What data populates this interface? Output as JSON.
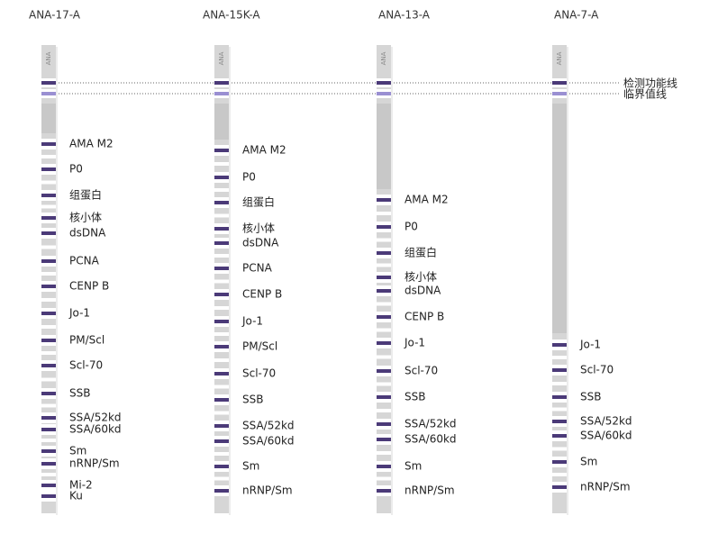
{
  "strips": [
    {
      "title": "ANA-17-A",
      "strip_label": "ANA",
      "bands": [
        "AMA M2",
        "P0",
        "组蛋白",
        "核小体",
        "dsDNA",
        "PCNA",
        "CENP B",
        "Jo-1",
        "PM/Scl",
        "Scl-70",
        "SSB",
        "SSA/52kd",
        "SSA/60kd",
        "Sm",
        "nRNP/Sm",
        "Mi-2",
        "Ku"
      ]
    },
    {
      "title": "ANA-15K-A",
      "strip_label": "ANA",
      "bands": [
        "AMA M2",
        "P0",
        "组蛋白",
        "核小体",
        "dsDNA",
        "PCNA",
        "CENP B",
        "Jo-1",
        "PM/Scl",
        "Scl-70",
        "SSB",
        "SSA/52kd",
        "SSA/60kd",
        "Sm",
        "nRNP/Sm"
      ]
    },
    {
      "title": "ANA-13-A",
      "strip_label": "ANA",
      "bands": [
        "AMA M2",
        "P0",
        "组蛋白",
        "核小体",
        "dsDNA",
        "CENP B",
        "Jo-1",
        "Scl-70",
        "SSB",
        "SSA/52kd",
        "SSA/60kd",
        "Sm",
        "nRNP/Sm"
      ]
    },
    {
      "title": "ANA-7-A",
      "strip_label": "ANA",
      "bands": [
        "Jo-1",
        "Scl-70",
        "SSB",
        "SSA/52kd",
        "SSA/60kd",
        "Sm",
        "nRNP/Sm"
      ]
    }
  ],
  "reference_lines": [
    {
      "label": "检测功能线"
    },
    {
      "label": "临界值线"
    }
  ]
}
